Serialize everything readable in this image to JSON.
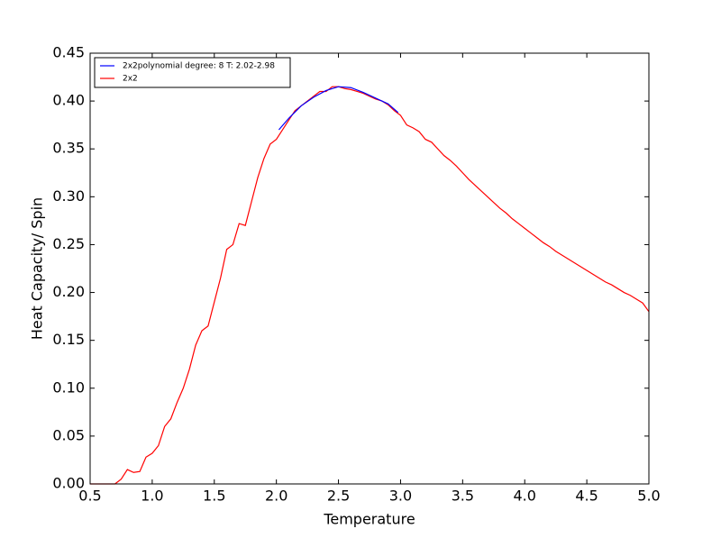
{
  "chart_data": {
    "type": "line",
    "xlabel": "Temperature",
    "ylabel": "Heat Capacity/ Spin",
    "xlim": [
      0.5,
      5.0
    ],
    "ylim": [
      0,
      0.45
    ],
    "xticks": [
      0.5,
      {
        "value": 1,
        "label": "1.0"
      },
      1.5,
      {
        "value": 2,
        "label": "2.0"
      },
      2.5,
      {
        "value": 3,
        "label": "3.0"
      },
      3.5,
      {
        "value": 4,
        "label": "4.0"
      },
      4.5,
      {
        "value": 5,
        "label": "5.0"
      }
    ],
    "yticks": [
      {
        "value": 0,
        "label": "0.00"
      },
      0.05,
      {
        "value": 0.1,
        "label": "0.10"
      },
      0.15,
      {
        "value": 0.2,
        "label": "0.20"
      },
      0.25,
      {
        "value": 0.3,
        "label": "0.30"
      },
      0.35,
      {
        "value": 0.4,
        "label": "0.40"
      },
      0.45
    ],
    "legend": "upper left",
    "series": [
      {
        "name": "2x2polynomial degree: 8 T: 2.02-2.98",
        "color": "#0000ff",
        "x": [
          2.02,
          2.1,
          2.2,
          2.3,
          2.4,
          2.5,
          2.6,
          2.7,
          2.8,
          2.9,
          2.98
        ],
        "values": [
          0.37,
          0.382,
          0.395,
          0.404,
          0.411,
          0.415,
          0.414,
          0.409,
          0.403,
          0.397,
          0.388
        ]
      },
      {
        "name": "2x2",
        "color": "#ff0000",
        "x": [
          0.5,
          0.55,
          0.6,
          0.65,
          0.7,
          0.75,
          0.8,
          0.85,
          0.9,
          0.95,
          1.0,
          1.05,
          1.1,
          1.15,
          1.2,
          1.25,
          1.3,
          1.35,
          1.4,
          1.45,
          1.5,
          1.55,
          1.6,
          1.65,
          1.7,
          1.75,
          1.8,
          1.85,
          1.9,
          1.95,
          2.0,
          2.05,
          2.1,
          2.15,
          2.2,
          2.25,
          2.3,
          2.35,
          2.4,
          2.45,
          2.5,
          2.55,
          2.6,
          2.65,
          2.7,
          2.75,
          2.8,
          2.85,
          2.9,
          2.95,
          3.0,
          3.05,
          3.1,
          3.15,
          3.2,
          3.25,
          3.3,
          3.35,
          3.4,
          3.45,
          3.5,
          3.55,
          3.6,
          3.65,
          3.7,
          3.75,
          3.8,
          3.85,
          3.9,
          3.95,
          4.0,
          4.05,
          4.1,
          4.15,
          4.2,
          4.25,
          4.3,
          4.35,
          4.4,
          4.45,
          4.5,
          4.55,
          4.6,
          4.65,
          4.7,
          4.75,
          4.8,
          4.85,
          4.9,
          4.95,
          5.0
        ],
        "values": [
          0,
          0,
          0,
          0,
          0,
          0.005,
          0.015,
          0.012,
          0.013,
          0.028,
          0.032,
          0.04,
          0.06,
          0.068,
          0.085,
          0.1,
          0.12,
          0.145,
          0.16,
          0.165,
          0.19,
          0.215,
          0.245,
          0.25,
          0.272,
          0.27,
          0.295,
          0.32,
          0.34,
          0.355,
          0.36,
          0.37,
          0.38,
          0.39,
          0.395,
          0.4,
          0.405,
          0.41,
          0.41,
          0.415,
          0.415,
          0.413,
          0.412,
          0.41,
          0.408,
          0.405,
          0.402,
          0.4,
          0.396,
          0.39,
          0.385,
          0.375,
          0.372,
          0.368,
          0.36,
          0.357,
          0.35,
          0.343,
          0.338,
          0.332,
          0.325,
          0.318,
          0.312,
          0.306,
          0.3,
          0.294,
          0.288,
          0.283,
          0.277,
          0.272,
          0.267,
          0.262,
          0.257,
          0.252,
          0.248,
          0.243,
          0.239,
          0.235,
          0.231,
          0.227,
          0.223,
          0.219,
          0.215,
          0.211,
          0.208,
          0.204,
          0.2,
          0.197,
          0.193,
          0.189,
          0.18
        ]
      }
    ]
  }
}
